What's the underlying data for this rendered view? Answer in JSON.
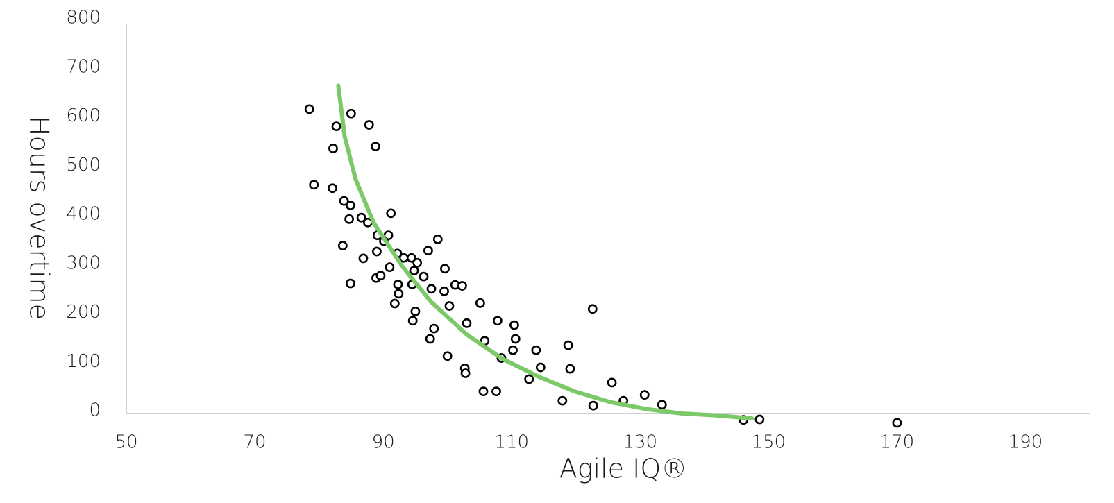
{
  "chart_data": {
    "type": "scatter",
    "xlabel": "Agile IQ®",
    "ylabel": "Hours overtime",
    "xlim": [
      50,
      200
    ],
    "xticks": [
      50,
      70,
      90,
      110,
      130,
      150,
      170,
      190
    ],
    "ylim": [
      0,
      800
    ],
    "yticks": [
      0,
      100,
      200,
      300,
      400,
      500,
      600,
      700,
      800
    ],
    "grid": false,
    "series": [
      {
        "type": "scatter",
        "color": "#000000",
        "x": [
          78.5,
          79.2,
          82.2,
          82.7,
          82.1,
          85.0,
          87.8,
          88.8,
          83.9,
          84.9,
          84.7,
          86.6,
          87.6,
          91.2,
          83.7,
          86.9,
          89.1,
          90.8,
          90.1,
          89.0,
          92.2,
          93.2,
          94.4,
          95.3,
          91.0,
          97.0,
          98.5,
          99.6,
          94.8,
          96.3,
          84.9,
          88.9,
          89.6,
          92.3,
          94.5,
          97.5,
          99.5,
          101.2,
          102.3,
          92.4,
          91.8,
          100.3,
          105.1,
          95.0,
          94.6,
          97.9,
          103.0,
          107.8,
          110.4,
          97.3,
          105.8,
          110.6,
          100.0,
          108.4,
          110.2,
          113.8,
          118.8,
          122.6,
          102.7,
          102.8,
          114.5,
          119.1,
          112.7,
          105.6,
          107.6,
          117.9,
          122.7,
          125.6,
          127.4,
          130.7,
          133.4,
          146.1,
          148.6,
          170.0
        ],
        "values": [
          620,
          466,
          540,
          585,
          459,
          611,
          588,
          544,
          433,
          424,
          396,
          399,
          389,
          408,
          342,
          316,
          363,
          363,
          351,
          330,
          326,
          317,
          317,
          307,
          298,
          332,
          355,
          295,
          291,
          279,
          265,
          276,
          281,
          263,
          263,
          254,
          249,
          262,
          260,
          244,
          224,
          219,
          225,
          208,
          189,
          173,
          184,
          189,
          180,
          152,
          148,
          152,
          117,
          113,
          129,
          129,
          139,
          213,
          92,
          82,
          94,
          91,
          70,
          45,
          45,
          26,
          16,
          63,
          26,
          38,
          18,
          -13,
          -12,
          -19
        ]
      },
      {
        "type": "line",
        "color": "#7dc96a",
        "x": [
          83.0,
          84.0,
          85.7,
          88.5,
          92.9,
          97.4,
          103.0,
          108.6,
          114.2,
          119.8,
          125.4,
          131.0,
          136.5,
          142.1,
          147.4
        ],
        "values": [
          668,
          564,
          477,
          389,
          301,
          228,
          161,
          111,
          75,
          45,
          23,
          9,
          0,
          -4,
          -10
        ]
      }
    ]
  }
}
